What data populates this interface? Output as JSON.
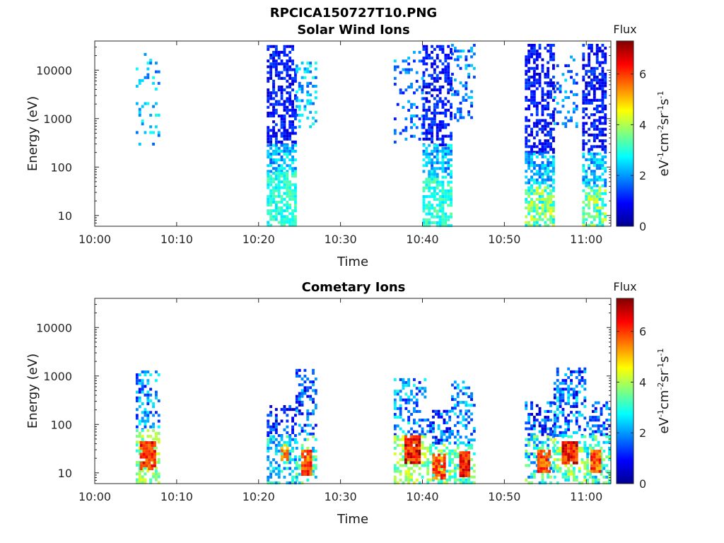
{
  "figure": {
    "title": "RPCICA150727T10.PNG"
  },
  "chart_data": [
    {
      "type": "heatmap",
      "title": "Solar Wind Ions",
      "xlabel": "Time",
      "ylabel": "Energy (eV)",
      "x_scale": "time",
      "y_scale": "log",
      "xlim": [
        "10:00",
        "11:03"
      ],
      "ylim": [
        6,
        40000
      ],
      "x_ticks": [
        "10:00",
        "10:10",
        "10:20",
        "10:30",
        "10:40",
        "10:50",
        "11:00"
      ],
      "y_ticks": [
        "10",
        "100",
        "1000",
        "10000"
      ],
      "colorbar": {
        "title": "Flux",
        "label": "eV-1cm-2sr-1s-1",
        "ticks": [
          "0",
          "2",
          "4",
          "6"
        ],
        "range": [
          0,
          7.3
        ],
        "colormap": "jet"
      },
      "blobs": [
        {
          "t_start": 5.0,
          "t_end": 8.0,
          "e_low": 300,
          "e_high": 26000,
          "density": 0.2,
          "flux_low": 1.5,
          "flux_high": 3.0
        },
        {
          "t_start": 21.0,
          "t_end": 24.5,
          "e_low": 300,
          "e_high": 33000,
          "density": 0.55,
          "flux_low": 0.5,
          "flux_high": 1.5
        },
        {
          "t_start": 21.0,
          "t_end": 24.5,
          "e_low": 80,
          "e_high": 300,
          "density": 0.65,
          "flux_low": 1.5,
          "flux_high": 3.0
        },
        {
          "t_start": 21.0,
          "t_end": 24.5,
          "e_low": 6,
          "e_high": 80,
          "density": 0.75,
          "flux_low": 2.5,
          "flux_high": 3.5
        },
        {
          "t_start": 24.5,
          "t_end": 27.0,
          "e_low": 700,
          "e_high": 15000,
          "density": 0.3,
          "flux_low": 1.5,
          "flux_high": 3.0
        },
        {
          "t_start": 36.5,
          "t_end": 40.0,
          "e_low": 300,
          "e_high": 25000,
          "density": 0.2,
          "flux_low": 1.0,
          "flux_high": 2.5
        },
        {
          "t_start": 40.0,
          "t_end": 43.5,
          "e_low": 300,
          "e_high": 33000,
          "density": 0.55,
          "flux_low": 0.5,
          "flux_high": 1.5
        },
        {
          "t_start": 40.0,
          "t_end": 43.5,
          "e_low": 60,
          "e_high": 300,
          "density": 0.6,
          "flux_low": 1.5,
          "flux_high": 3.0
        },
        {
          "t_start": 40.0,
          "t_end": 43.5,
          "e_low": 6,
          "e_high": 60,
          "density": 0.7,
          "flux_low": 2.5,
          "flux_high": 3.5
        },
        {
          "t_start": 43.5,
          "t_end": 46.5,
          "e_low": 700,
          "e_high": 35000,
          "density": 0.25,
          "flux_low": 1.0,
          "flux_high": 2.5
        },
        {
          "t_start": 52.5,
          "t_end": 56.0,
          "e_low": 200,
          "e_high": 35000,
          "density": 0.55,
          "flux_low": 0.5,
          "flux_high": 1.5
        },
        {
          "t_start": 52.5,
          "t_end": 56.0,
          "e_low": 40,
          "e_high": 200,
          "density": 0.6,
          "flux_low": 1.5,
          "flux_high": 3.0
        },
        {
          "t_start": 52.5,
          "t_end": 56.0,
          "e_low": 6,
          "e_high": 40,
          "density": 0.75,
          "flux_low": 2.5,
          "flux_high": 4.5
        },
        {
          "t_start": 56.0,
          "t_end": 59.0,
          "e_low": 700,
          "e_high": 20000,
          "density": 0.25,
          "flux_low": 1.0,
          "flux_high": 2.5
        },
        {
          "t_start": 59.5,
          "t_end": 62.5,
          "e_low": 200,
          "e_high": 35000,
          "density": 0.55,
          "flux_low": 0.5,
          "flux_high": 1.5
        },
        {
          "t_start": 59.5,
          "t_end": 62.5,
          "e_low": 40,
          "e_high": 200,
          "density": 0.6,
          "flux_low": 1.5,
          "flux_high": 3.0
        },
        {
          "t_start": 59.5,
          "t_end": 62.5,
          "e_low": 6,
          "e_high": 40,
          "density": 0.75,
          "flux_low": 2.5,
          "flux_high": 4.5
        }
      ]
    },
    {
      "type": "heatmap",
      "title": "Cometary Ions",
      "xlabel": "Time",
      "ylabel": "Energy (eV)",
      "x_scale": "time",
      "y_scale": "log",
      "xlim": [
        "10:00",
        "11:03"
      ],
      "ylim": [
        6,
        40000
      ],
      "x_ticks": [
        "10:00",
        "10:10",
        "10:20",
        "10:30",
        "10:40",
        "10:50",
        "11:00"
      ],
      "y_ticks": [
        "10",
        "100",
        "1000",
        "10000"
      ],
      "colorbar": {
        "title": "Flux",
        "label": "eV-1cm-2sr-1s-1",
        "ticks": [
          "0",
          "2",
          "4",
          "6"
        ],
        "range": [
          0,
          7.3
        ],
        "colormap": "jet"
      },
      "blobs": [
        {
          "t_start": 5.0,
          "t_end": 8.0,
          "e_low": 80,
          "e_high": 1300,
          "density": 0.35,
          "flux_low": 1.0,
          "flux_high": 2.8
        },
        {
          "t_start": 5.0,
          "t_end": 8.0,
          "e_low": 6,
          "e_high": 80,
          "density": 0.55,
          "flux_low": 3.0,
          "flux_high": 4.5
        },
        {
          "t_start": 5.5,
          "t_end": 7.5,
          "e_low": 12,
          "e_high": 45,
          "density": 0.9,
          "flux_low": 5.5,
          "flux_high": 7.0
        },
        {
          "t_start": 21.0,
          "t_end": 24.5,
          "e_low": 60,
          "e_high": 250,
          "density": 0.45,
          "flux_low": 0.5,
          "flux_high": 2.0
        },
        {
          "t_start": 21.0,
          "t_end": 24.5,
          "e_low": 6,
          "e_high": 60,
          "density": 0.45,
          "flux_low": 1.5,
          "flux_high": 3.5
        },
        {
          "t_start": 22.7,
          "t_end": 23.6,
          "e_low": 18,
          "e_high": 40,
          "density": 0.9,
          "flux_low": 4.5,
          "flux_high": 6.0
        },
        {
          "t_start": 24.5,
          "t_end": 27.0,
          "e_low": 60,
          "e_high": 1400,
          "density": 0.35,
          "flux_low": 0.5,
          "flux_high": 2.5
        },
        {
          "t_start": 24.5,
          "t_end": 27.0,
          "e_low": 6,
          "e_high": 60,
          "density": 0.45,
          "flux_low": 2.0,
          "flux_high": 4.0
        },
        {
          "t_start": 25.2,
          "t_end": 26.5,
          "e_low": 9,
          "e_high": 30,
          "density": 0.9,
          "flux_low": 5.0,
          "flux_high": 6.5
        },
        {
          "t_start": 36.5,
          "t_end": 40.5,
          "e_low": 60,
          "e_high": 900,
          "density": 0.4,
          "flux_low": 1.0,
          "flux_high": 3.0
        },
        {
          "t_start": 36.5,
          "t_end": 40.5,
          "e_low": 6,
          "e_high": 60,
          "density": 0.5,
          "flux_low": 3.0,
          "flux_high": 4.5
        },
        {
          "t_start": 37.8,
          "t_end": 39.8,
          "e_low": 15,
          "e_high": 60,
          "density": 0.95,
          "flux_low": 5.5,
          "flux_high": 7.2
        },
        {
          "t_start": 40.5,
          "t_end": 43.5,
          "e_low": 40,
          "e_high": 200,
          "density": 0.45,
          "flux_low": 0.5,
          "flux_high": 2.5
        },
        {
          "t_start": 40.5,
          "t_end": 43.5,
          "e_low": 6,
          "e_high": 40,
          "density": 0.5,
          "flux_low": 2.5,
          "flux_high": 4.5
        },
        {
          "t_start": 41.2,
          "t_end": 42.6,
          "e_low": 8,
          "e_high": 25,
          "density": 0.9,
          "flux_low": 5.0,
          "flux_high": 6.5
        },
        {
          "t_start": 43.5,
          "t_end": 46.5,
          "e_low": 40,
          "e_high": 800,
          "density": 0.4,
          "flux_low": 1.0,
          "flux_high": 3.0
        },
        {
          "t_start": 43.5,
          "t_end": 46.5,
          "e_low": 6,
          "e_high": 40,
          "density": 0.5,
          "flux_low": 2.5,
          "flux_high": 4.0
        },
        {
          "t_start": 44.5,
          "t_end": 45.8,
          "e_low": 8,
          "e_high": 28,
          "density": 0.95,
          "flux_low": 5.5,
          "flux_high": 7.0
        },
        {
          "t_start": 52.5,
          "t_end": 56.0,
          "e_low": 60,
          "e_high": 300,
          "density": 0.5,
          "flux_low": 0.3,
          "flux_high": 2.5
        },
        {
          "t_start": 52.5,
          "t_end": 56.0,
          "e_low": 6,
          "e_high": 60,
          "density": 0.45,
          "flux_low": 1.5,
          "flux_high": 4.0
        },
        {
          "t_start": 54.0,
          "t_end": 55.4,
          "e_low": 10,
          "e_high": 30,
          "density": 0.9,
          "flux_low": 5.0,
          "flux_high": 6.5
        },
        {
          "t_start": 56.0,
          "t_end": 60.0,
          "e_low": 60,
          "e_high": 1500,
          "density": 0.4,
          "flux_low": 0.5,
          "flux_high": 3.0
        },
        {
          "t_start": 56.0,
          "t_end": 60.0,
          "e_low": 6,
          "e_high": 60,
          "density": 0.5,
          "flux_low": 2.5,
          "flux_high": 4.5
        },
        {
          "t_start": 57.0,
          "t_end": 59.0,
          "e_low": 15,
          "e_high": 45,
          "density": 0.95,
          "flux_low": 5.5,
          "flux_high": 7.2
        },
        {
          "t_start": 60.0,
          "t_end": 63.0,
          "e_low": 60,
          "e_high": 300,
          "density": 0.45,
          "flux_low": 0.5,
          "flux_high": 2.5
        },
        {
          "t_start": 60.0,
          "t_end": 63.0,
          "e_low": 6,
          "e_high": 60,
          "density": 0.45,
          "flux_low": 2.0,
          "flux_high": 4.0
        },
        {
          "t_start": 60.5,
          "t_end": 61.8,
          "e_low": 10,
          "e_high": 30,
          "density": 0.9,
          "flux_low": 5.0,
          "flux_high": 6.5
        }
      ]
    }
  ]
}
